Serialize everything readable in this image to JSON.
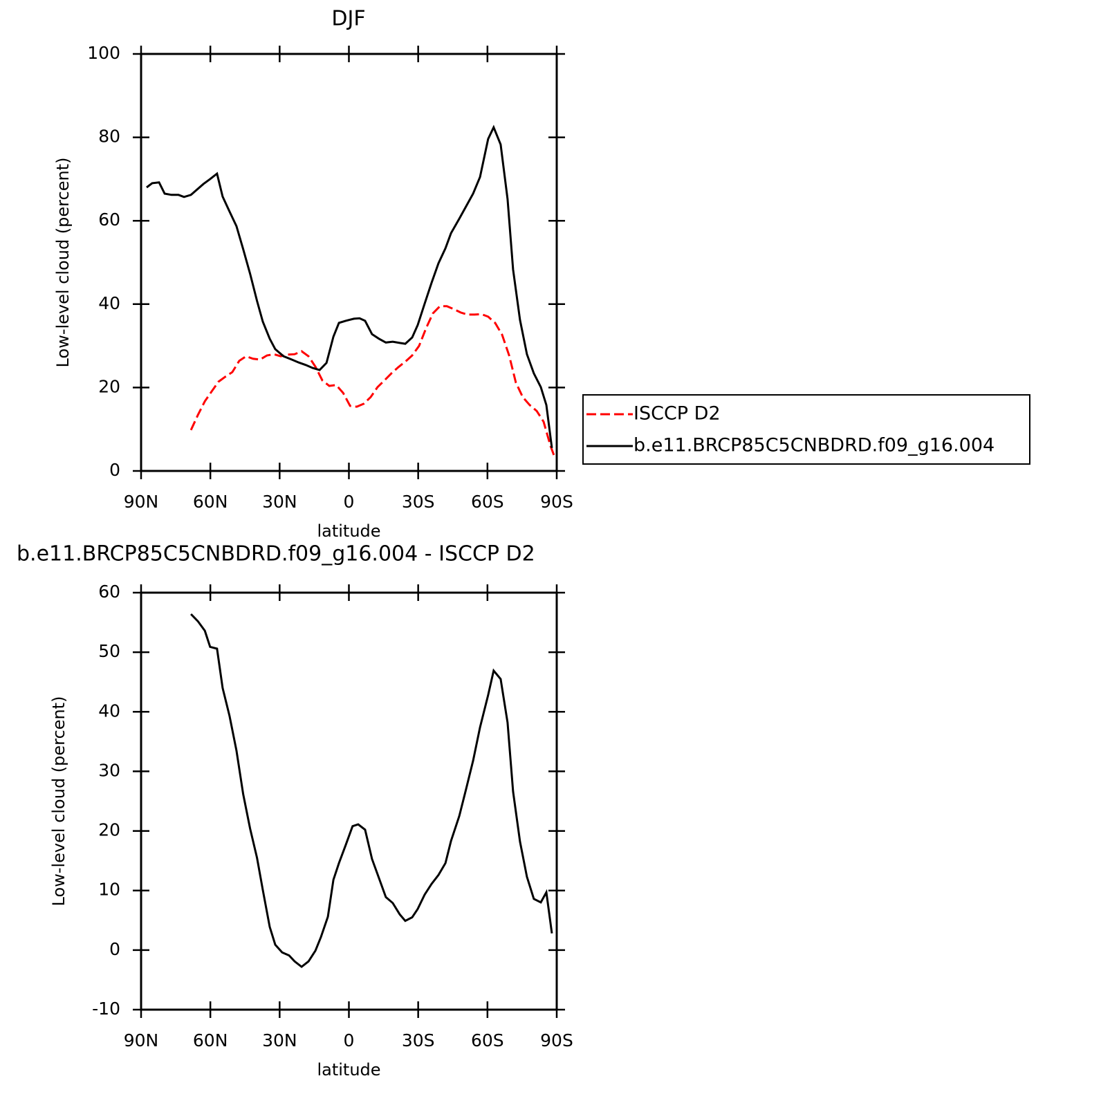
{
  "chart_data": [
    {
      "type": "line",
      "title": "DJF",
      "xlabel": "latitude",
      "ylabel": "Low-level cloud (percent)",
      "xlim": [
        90,
        -90
      ],
      "xticks": [
        {
          "value": 90,
          "label": "90N"
        },
        {
          "value": 60,
          "label": "60N"
        },
        {
          "value": 30,
          "label": "30N"
        },
        0,
        {
          "value": -30,
          "label": "30S"
        },
        {
          "value": -60,
          "label": "60S"
        },
        {
          "value": -90,
          "label": "90S"
        }
      ],
      "ylim": [
        0,
        100
      ],
      "yticks": [
        0,
        20,
        40,
        60,
        80,
        100
      ],
      "legend": "right",
      "series": [
        {
          "name": "ISCCP D2",
          "color": "#ff0000",
          "linestyle": "dashed",
          "x": [
            68.4,
            65.4,
            62.4,
            59.4,
            56.5,
            53.5,
            50.5,
            47.5,
            44.5,
            41.5,
            38.5,
            35.5,
            32.5,
            29.5,
            26.5,
            23.5,
            20.5,
            17.5,
            14.5,
            11.5,
            8.5,
            5.5,
            2.5,
            -0.5,
            -3.4,
            -6.4,
            -9.4,
            -12.4,
            -15.4,
            -18.4,
            -21.4,
            -24.4,
            -27.4,
            -30.4,
            -33.4,
            -36.4,
            -39.4,
            -42.4,
            -45.4,
            -48.4,
            -51.4,
            -54.4,
            -57.4,
            -60.3,
            -63.3,
            -66.3,
            -69.4,
            -72.3,
            -75.3,
            -78.3,
            -81.3,
            -84.3,
            -87.3,
            -89.1
          ],
          "values": [
            9.8,
            13.4,
            16.7,
            19.1,
            21.4,
            22.6,
            23.7,
            26.4,
            27.5,
            26.9,
            26.7,
            27.7,
            28.0,
            27.5,
            27.9,
            28.0,
            28.7,
            27.5,
            25.0,
            21.7,
            20.4,
            20.6,
            18.7,
            15.6,
            15.4,
            16.1,
            17.7,
            20.1,
            21.7,
            23.4,
            24.9,
            26.2,
            27.7,
            30.0,
            34.2,
            37.8,
            39.5,
            39.5,
            38.8,
            38.0,
            37.5,
            37.5,
            37.6,
            37.0,
            35.5,
            32.7,
            27.7,
            21.2,
            17.7,
            15.8,
            14.4,
            11.8,
            6.0,
            3.3
          ]
        },
        {
          "name": "b.e11.BRCP85C5CNBDRD.f09_g16.004",
          "color": "#000000",
          "linestyle": "solid",
          "x": [
            87.6,
            85.2,
            82.2,
            79.8,
            76.8,
            73.8,
            71.4,
            68.4,
            63.0,
            60.1,
            57.1,
            54.7,
            51.7,
            48.7,
            45.8,
            42.8,
            39.8,
            37.3,
            34.3,
            31.9,
            28.3,
            24.7,
            21.7,
            18.7,
            15.7,
            12.7,
            9.7,
            6.7,
            4.3,
            1.4,
            -2.2,
            -4.6,
            -7.0,
            -10.0,
            -13.0,
            -16.0,
            -19.0,
            -22.0,
            -24.4,
            -27.4,
            -29.8,
            -32.8,
            -35.8,
            -38.8,
            -41.8,
            -44.2,
            -47.8,
            -50.8,
            -53.8,
            -56.8,
            -60.3,
            -62.7,
            -65.7,
            -68.7,
            -71.1,
            -74.1,
            -77.1,
            -80.1,
            -83.1,
            -85.5,
            -87.9
          ],
          "values": [
            68.0,
            69.0,
            69.2,
            66.5,
            66.2,
            66.2,
            65.7,
            66.2,
            68.8,
            70.0,
            71.3,
            65.8,
            62.2,
            58.7,
            53.2,
            47.3,
            40.8,
            35.8,
            31.7,
            29.2,
            27.5,
            26.7,
            26.0,
            25.4,
            24.7,
            24.2,
            25.9,
            32.2,
            35.5,
            36.0,
            36.5,
            36.6,
            36.0,
            32.8,
            31.7,
            30.8,
            31.0,
            30.7,
            30.5,
            32.0,
            35.0,
            40.1,
            45.1,
            49.8,
            53.4,
            57.0,
            60.5,
            63.5,
            66.5,
            70.5,
            79.6,
            82.4,
            78.3,
            65.2,
            48.3,
            36.2,
            28.0,
            23.4,
            20.1,
            15.8,
            5.5
          ]
        }
      ]
    },
    {
      "type": "line",
      "title": "b.e11.BRCP85C5CNBDRD.f09_g16.004 - ISCCP D2",
      "xlabel": "latitude",
      "ylabel": "Low-level cloud (percent)",
      "xlim": [
        90,
        -90
      ],
      "xticks": [
        {
          "value": 90,
          "label": "90N"
        },
        {
          "value": 60,
          "label": "60N"
        },
        {
          "value": 30,
          "label": "30N"
        },
        0,
        {
          "value": -30,
          "label": "30S"
        },
        {
          "value": -60,
          "label": "60S"
        },
        {
          "value": -90,
          "label": "90S"
        }
      ],
      "ylim": [
        -10,
        60
      ],
      "yticks": [
        -10,
        0,
        10,
        20,
        30,
        40,
        50,
        60
      ],
      "series": [
        {
          "color": "#000000",
          "linestyle": "solid",
          "x": [
            68.4,
            65.4,
            62.4,
            60.1,
            57.1,
            54.7,
            51.7,
            48.7,
            45.8,
            42.8,
            39.8,
            37.3,
            34.3,
            31.9,
            28.9,
            25.9,
            23.5,
            20.5,
            17.5,
            14.5,
            12.1,
            9.1,
            6.7,
            4.3,
            1.4,
            -1.6,
            -4.0,
            -7.0,
            -10.0,
            -13.0,
            -16.0,
            -19.0,
            -22.0,
            -24.4,
            -27.4,
            -29.8,
            -32.8,
            -35.8,
            -38.8,
            -41.8,
            -44.2,
            -47.8,
            -50.8,
            -53.8,
            -56.8,
            -60.3,
            -62.7,
            -65.7,
            -68.7,
            -71.1,
            -74.1,
            -77.1,
            -80.1,
            -83.1,
            -85.5,
            -87.9
          ],
          "values": [
            56.4,
            55.2,
            53.6,
            50.9,
            50.6,
            44.0,
            39.3,
            33.5,
            26.2,
            20.4,
            15.5,
            10.1,
            3.9,
            0.9,
            -0.4,
            -0.9,
            -1.9,
            -2.8,
            -1.9,
            -0.1,
            2.2,
            5.6,
            11.8,
            14.6,
            17.6,
            20.8,
            21.1,
            20.2,
            15.3,
            12.1,
            8.9,
            7.9,
            6.0,
            4.9,
            5.5,
            6.9,
            9.3,
            11.1,
            12.6,
            14.6,
            18.3,
            22.5,
            27.1,
            31.8,
            37.4,
            42.8,
            46.9,
            45.5,
            38.2,
            26.6,
            18.2,
            12.3,
            8.6,
            8.0,
            9.7,
            2.8
          ]
        }
      ]
    }
  ]
}
